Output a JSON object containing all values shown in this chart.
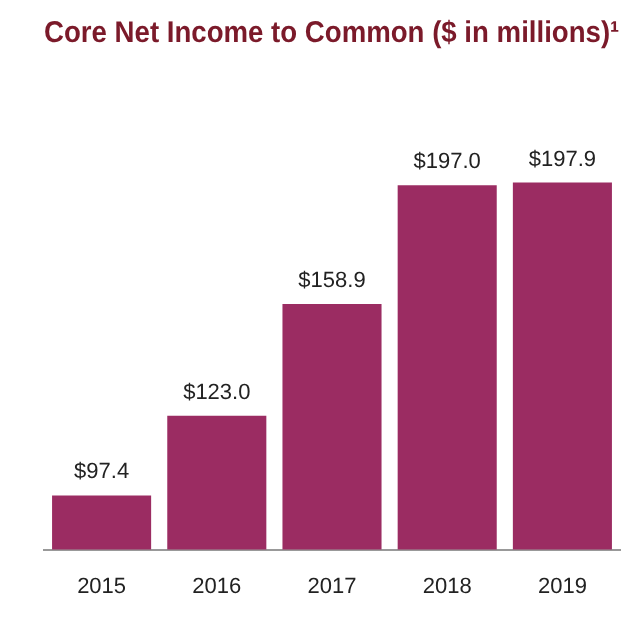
{
  "chart_data": {
    "type": "bar",
    "title": "Core Net Income to Common ($ in millions)¹",
    "categories": [
      "2015",
      "2016",
      "2017",
      "2018",
      "2019"
    ],
    "values": [
      97.4,
      123.0,
      158.9,
      197.0,
      197.9
    ],
    "value_labels": [
      "$97.4",
      "$123.0",
      "$158.9",
      "$197.0",
      "$197.9"
    ],
    "color": "#9b2c62",
    "tick_labels": "x",
    "grid": false,
    "legend": false
  }
}
